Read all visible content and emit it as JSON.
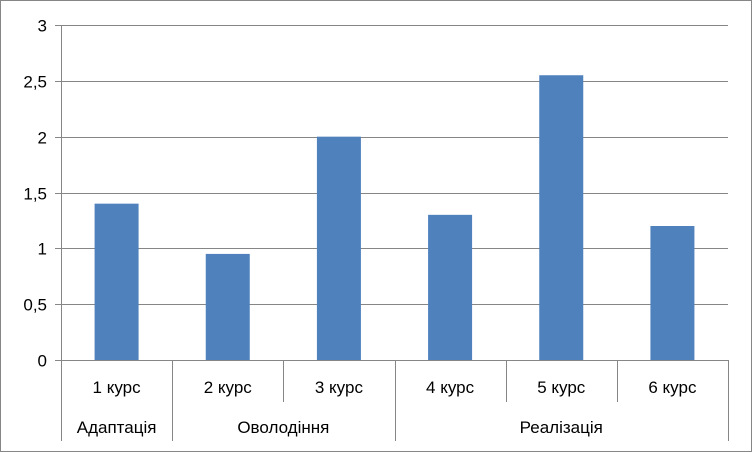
{
  "chart_data": {
    "type": "bar",
    "categories": [
      "1 курс",
      "2 курс",
      "3 курс",
      "4 курс",
      "5 курс",
      "6 курс"
    ],
    "groups": [
      {
        "label": "Адаптація",
        "categories": [
          "1 курс"
        ]
      },
      {
        "label": "Оволодіння",
        "categories": [
          "2 курс",
          "3 курс"
        ]
      },
      {
        "label": "Реалізація",
        "categories": [
          "4 курс",
          "5 курс",
          "6 курс"
        ]
      }
    ],
    "values": [
      1.4,
      0.95,
      2.0,
      1.3,
      2.55,
      1.2
    ],
    "ylim": [
      0,
      3
    ],
    "yticks": [
      "0",
      "0,5",
      "1",
      "1,5",
      "2",
      "2,5",
      "3"
    ],
    "grid": true,
    "colors": {
      "bar": "#4F81BD",
      "grid": "#868686",
      "axis": "#868686"
    }
  }
}
